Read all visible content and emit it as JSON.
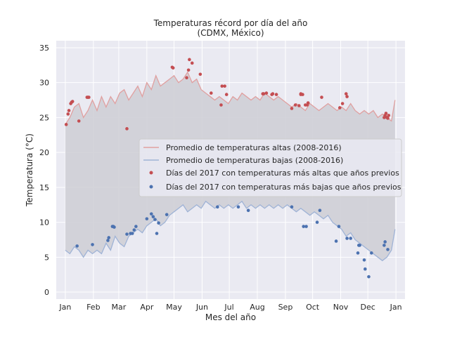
{
  "chart_data": {
    "type": "line",
    "title": "Temperaturas récord por día del año",
    "subtitle": "(CDMX, México)",
    "xlabel": "Mes del año",
    "ylabel": "Temperatura (°C)",
    "xlim": [
      -10,
      375
    ],
    "ylim": [
      -1,
      36
    ],
    "grid": true,
    "legend_placement": "center-right",
    "xticks": [
      {
        "value": 0,
        "label": "Jan"
      },
      {
        "value": 31,
        "label": "Feb"
      },
      {
        "value": 59,
        "label": "Mar"
      },
      {
        "value": 90,
        "label": "Apr"
      },
      {
        "value": 120,
        "label": "May"
      },
      {
        "value": 151,
        "label": "Jun"
      },
      {
        "value": 181,
        "label": "Jul"
      },
      {
        "value": 212,
        "label": "Aug"
      },
      {
        "value": 243,
        "label": "Sep"
      },
      {
        "value": 273,
        "label": "Oct"
      },
      {
        "value": 304,
        "label": "Nov"
      },
      {
        "value": 334,
        "label": "Dec"
      },
      {
        "value": 365,
        "label": "Jan"
      }
    ],
    "yticks": [
      0,
      5,
      10,
      15,
      20,
      25,
      30,
      35
    ],
    "colors": {
      "background": "#eaeaf2",
      "high_line": "#e0a0a0",
      "low_line": "#9fb3d6",
      "fill": "#cfcfd6",
      "record_high": "#c44e52",
      "record_low": "#4c72b0"
    },
    "series": [
      {
        "name": "Promedio de temperaturas altas (2008-2016)",
        "kind": "line",
        "x": [
          0,
          5,
          10,
          15,
          20,
          25,
          30,
          35,
          40,
          45,
          50,
          55,
          60,
          65,
          70,
          75,
          80,
          85,
          90,
          95,
          100,
          105,
          110,
          115,
          120,
          125,
          130,
          135,
          140,
          145,
          150,
          155,
          160,
          165,
          170,
          175,
          180,
          185,
          190,
          195,
          200,
          205,
          210,
          215,
          220,
          225,
          230,
          235,
          240,
          245,
          250,
          255,
          260,
          265,
          270,
          275,
          280,
          285,
          290,
          295,
          300,
          305,
          310,
          315,
          320,
          325,
          330,
          335,
          340,
          345,
          350,
          355,
          360,
          364
        ],
        "values": [
          24,
          25,
          26.5,
          27,
          25,
          26,
          27.5,
          26,
          28,
          26.5,
          28,
          27,
          28.5,
          29,
          27.5,
          28.5,
          29.5,
          28,
          30,
          29,
          31,
          29.5,
          30,
          30.5,
          31,
          30,
          30.5,
          31.5,
          30,
          30.5,
          29,
          28.5,
          28,
          27.5,
          28,
          27.5,
          27,
          28,
          27.5,
          28.5,
          28,
          27.5,
          28,
          27.5,
          28.5,
          28,
          27.5,
          28,
          27.5,
          27,
          26.5,
          27,
          26.5,
          26,
          27,
          26.5,
          26,
          26.5,
          27,
          26.5,
          26,
          26.5,
          26,
          27,
          26,
          25.5,
          26,
          25.5,
          26,
          25,
          25.5,
          25,
          24.5,
          27.5
        ]
      },
      {
        "name": "Promedio de temperaturas bajas (2008-2016)",
        "kind": "line",
        "x": [
          0,
          5,
          10,
          15,
          20,
          25,
          30,
          35,
          40,
          45,
          50,
          55,
          60,
          65,
          70,
          75,
          80,
          85,
          90,
          95,
          100,
          105,
          110,
          115,
          120,
          125,
          130,
          135,
          140,
          145,
          150,
          155,
          160,
          165,
          170,
          175,
          180,
          185,
          190,
          195,
          200,
          205,
          210,
          215,
          220,
          225,
          230,
          235,
          240,
          245,
          250,
          255,
          260,
          265,
          270,
          275,
          280,
          285,
          290,
          295,
          300,
          305,
          310,
          315,
          320,
          325,
          330,
          335,
          340,
          345,
          350,
          355,
          360,
          364
        ],
        "values": [
          6,
          5.5,
          6.5,
          6,
          5,
          6,
          5.5,
          6,
          5.5,
          7,
          6,
          8,
          7,
          6.5,
          8,
          8.5,
          9,
          8.5,
          9.5,
          10,
          10.5,
          9.5,
          10,
          11,
          11.5,
          12,
          12.5,
          11.5,
          12,
          12.5,
          12,
          13,
          12.5,
          12,
          12.5,
          12,
          12.5,
          12,
          12.5,
          13,
          12,
          12.5,
          12,
          12.5,
          12,
          12.5,
          12,
          12.5,
          12,
          12.5,
          12,
          11.5,
          12,
          11.5,
          11,
          11.5,
          11,
          10.5,
          11,
          10,
          9.5,
          9,
          8,
          8.5,
          7.5,
          7,
          6.5,
          6,
          5.5,
          5,
          4.5,
          5,
          6,
          9
        ]
      },
      {
        "name": "Días del 2017 con temperaturas más altas que años previos",
        "kind": "scatter",
        "x": [
          1,
          3,
          4,
          6,
          7,
          8,
          15,
          24,
          25,
          26,
          68,
          118,
          119,
          134,
          136,
          137,
          140,
          149,
          161,
          172,
          173,
          176,
          178,
          218,
          219,
          222,
          228,
          229,
          233,
          250,
          254,
          258,
          260,
          260,
          262,
          265,
          267,
          268,
          283,
          303,
          306,
          310,
          311,
          352,
          353,
          354,
          355,
          356,
          357
        ],
        "values": [
          24,
          25.5,
          26,
          27,
          27.2,
          27.3,
          24.5,
          27.9,
          27.9,
          27.9,
          23.4,
          32.2,
          32.1,
          30.7,
          31.8,
          33.3,
          32.8,
          31.2,
          28.5,
          26.8,
          29.5,
          29.5,
          28.3,
          28.4,
          28.4,
          28.5,
          28.3,
          28.4,
          28.3,
          26.3,
          26.8,
          26.7,
          28.4,
          28.3,
          28.3,
          26.8,
          26.8,
          27.1,
          27.9,
          26.4,
          27.0,
          28.4,
          28.0,
          25.0,
          25.3,
          25.6,
          25.0,
          24.9,
          25.3
        ]
      },
      {
        "name": "Días del 2017 con temperaturas más bajas que años previos",
        "kind": "scatter",
        "x": [
          13,
          30,
          47,
          48,
          52,
          53,
          54,
          68,
          72,
          74,
          76,
          78,
          90,
          95,
          97,
          99,
          101,
          103,
          112,
          168,
          191,
          202,
          250,
          263,
          266,
          278,
          281,
          299,
          302,
          311,
          315,
          323,
          324,
          325,
          330,
          331,
          335,
          338,
          352,
          353,
          356
        ],
        "values": [
          6.6,
          6.8,
          7.4,
          7.8,
          9.4,
          9.4,
          9.3,
          8.3,
          8.4,
          8.4,
          8.9,
          9.4,
          10.5,
          11.2,
          10.8,
          10.4,
          8.4,
          9.9,
          11.1,
          12.2,
          12.2,
          11.7,
          12.2,
          9.4,
          9.4,
          10.0,
          11.7,
          7.3,
          9.4,
          7.7,
          7.7,
          5.6,
          6.7,
          6.7,
          4.6,
          3.3,
          2.2,
          5.6,
          6.7,
          7.2,
          6.1
        ]
      }
    ]
  }
}
